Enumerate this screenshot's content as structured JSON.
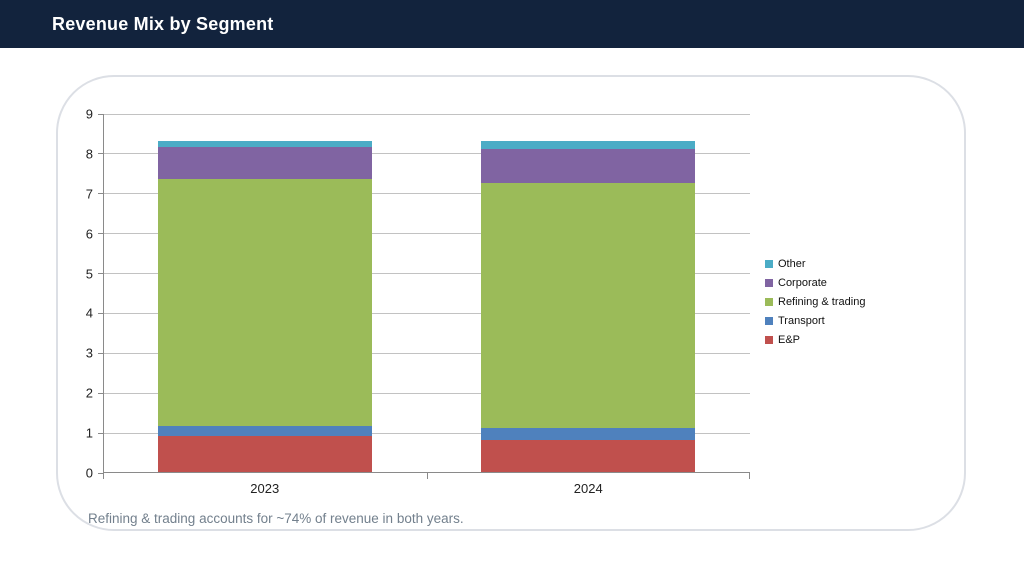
{
  "header": {
    "title": "Revenue Mix by Segment"
  },
  "caption": "Refining & trading accounts for ~74% of revenue in both years.",
  "colors": {
    "header_bg": "#12233d",
    "header_text": "#ffffff",
    "gridline": "#c2c2c2",
    "axis": "#8a8a8a",
    "tick_label": "#222222",
    "legend_text": "#111111",
    "caption_text": "#73808d",
    "card_border": "#dcdfe5"
  },
  "chart_data": {
    "type": "bar",
    "stacked": true,
    "title": "",
    "xlabel": "",
    "ylabel": "",
    "categories": [
      "2023",
      "2024"
    ],
    "series": [
      {
        "name": "E&P",
        "color": "#C0504D",
        "values": [
          0.9,
          0.8
        ]
      },
      {
        "name": "Transport",
        "color": "#4F81BD",
        "values": [
          0.25,
          0.3
        ]
      },
      {
        "name": "Refining & trading",
        "color": "#9BBB59",
        "values": [
          6.2,
          6.15
        ]
      },
      {
        "name": "Corporate",
        "color": "#8064A2",
        "values": [
          0.8,
          0.85
        ]
      },
      {
        "name": "Other",
        "color": "#4BACC6",
        "values": [
          0.15,
          0.2
        ]
      }
    ],
    "totals": [
      8.3,
      8.3
    ],
    "ylim": [
      0,
      9
    ],
    "yticks": [
      0,
      1,
      2,
      3,
      4,
      5,
      6,
      7,
      8,
      9
    ],
    "grid": true,
    "legend_position": "right",
    "legend_order_top_to_bottom": [
      "Other",
      "Corporate",
      "Refining & trading",
      "Transport",
      "E&P"
    ]
  }
}
